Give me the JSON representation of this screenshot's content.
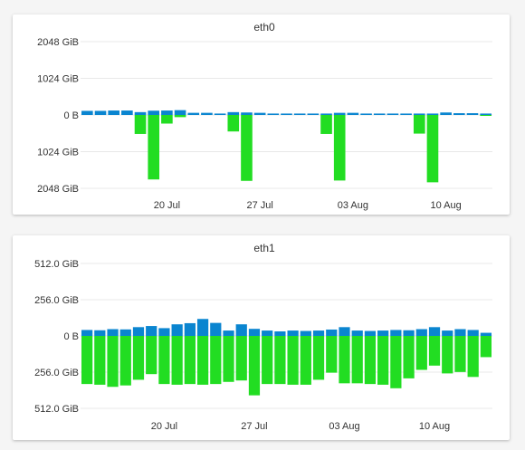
{
  "colors": {
    "received": "#0a85d0",
    "transmitted": "#22dd22",
    "grid": "#e8e8e8",
    "text": "#333333"
  },
  "chart_data": [
    {
      "type": "bar",
      "title": "eth0",
      "x_tick_labels": [
        "20 Jul",
        "27 Jul",
        "03 Aug",
        "10 Aug"
      ],
      "x_tick_index": [
        6,
        13,
        20,
        27
      ],
      "y_tick_labels": [
        "2048 GiB",
        "1024 GiB",
        "0 B",
        "1024 GiB",
        "2048 GiB"
      ],
      "y_tick_values": [
        2048,
        1024,
        0,
        -1024,
        -2048
      ],
      "ylim": [
        -2048,
        2048
      ],
      "unit": "GiB",
      "grid": true,
      "series": [
        {
          "values": [
            115,
            115,
            125,
            125,
            80,
            120,
            125,
            135,
            60,
            60,
            40,
            80,
            70,
            60,
            40,
            40,
            40,
            40,
            40,
            60,
            60,
            40,
            40,
            40,
            40,
            40,
            40,
            70,
            50,
            50,
            40
          ]
        },
        {
          "values": [
            0,
            0,
            0,
            0,
            -530,
            -1800,
            -240,
            -60,
            0,
            0,
            0,
            -460,
            -1840,
            0,
            0,
            0,
            0,
            0,
            -530,
            -1830,
            0,
            0,
            0,
            0,
            0,
            -520,
            -1880,
            0,
            0,
            0,
            -20
          ]
        }
      ]
    },
    {
      "type": "bar",
      "title": "eth1",
      "x_tick_labels": [
        "20 Jul",
        "27 Jul",
        "03 Aug",
        "10 Aug"
      ],
      "x_tick_index": [
        6,
        13,
        20,
        27
      ],
      "y_tick_labels": [
        "512.0 GiB",
        "256.0 GiB",
        "0 B",
        "256.0 GiB",
        "512.0 GiB"
      ],
      "y_tick_values": [
        512,
        256,
        0,
        -256,
        -512
      ],
      "ylim": [
        -512,
        512
      ],
      "unit": "GiB",
      "grid": true,
      "series": [
        {
          "values": [
            42,
            40,
            48,
            46,
            62,
            70,
            55,
            82,
            90,
            120,
            92,
            38,
            82,
            50,
            38,
            32,
            38,
            35,
            38,
            45,
            62,
            38,
            35,
            38,
            42,
            40,
            48,
            62,
            38,
            48,
            42,
            22
          ]
        },
        {
          "values": [
            -340,
            -345,
            -360,
            -350,
            -310,
            -270,
            -340,
            -345,
            -340,
            -345,
            -340,
            -325,
            -315,
            -420,
            -340,
            -340,
            -345,
            -345,
            -310,
            -260,
            -335,
            -335,
            -340,
            -345,
            -370,
            -300,
            -240,
            -210,
            -265,
            -255,
            -290,
            -150
          ]
        }
      ]
    }
  ]
}
